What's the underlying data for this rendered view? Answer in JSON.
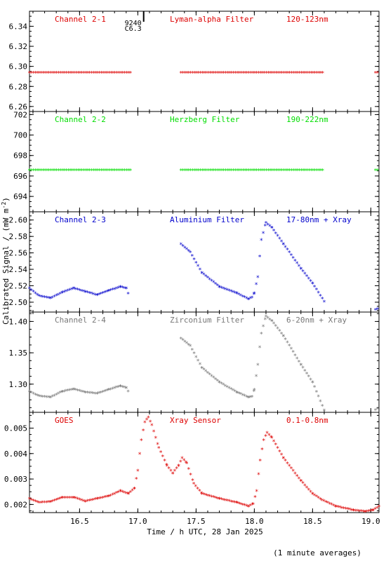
{
  "chart_data": {
    "type": "scatter",
    "xlabel": "Time / h UTC, 28 Jan 2025",
    "ylabel": "Calibrated Signal / (mW m",
    "ylabel_sup": "-2",
    "ylabel_close": ")",
    "footnote": "(1 minute averages)",
    "xlim": [
      16.07,
      19.07
    ],
    "xticks": [
      "16.5",
      "17.0",
      "17.5",
      "18.0",
      "18.5",
      "19.0"
    ],
    "xtick_values": [
      16.5,
      17.0,
      17.5,
      18.0,
      18.5,
      19.0
    ],
    "flare_marker": {
      "x": 17.02,
      "code": "9240",
      "class": "C6.3"
    },
    "panels": [
      {
        "channel": "Channel 2-1",
        "filter": "Lyman-alpha Filter",
        "band": "120-123nm",
        "color": "#dd0000",
        "ylim": [
          6.255,
          6.355
        ],
        "yticks": [
          "6.26",
          "6.28",
          "6.30",
          "6.32",
          "6.34"
        ],
        "ytick_values": [
          6.26,
          6.28,
          6.3,
          6.32,
          6.34
        ],
        "series": [
          [
            16.07,
            6.293
          ],
          [
            16.95,
            6.293
          ],
          null,
          [
            17.37,
            6.293
          ],
          [
            18.6,
            6.293
          ],
          null,
          [
            19.04,
            6.293
          ],
          [
            19.07,
            6.293
          ]
        ]
      },
      {
        "channel": "Channel 2-2",
        "filter": "Herzberg Filter",
        "band": "190-222nm",
        "color": "#00dd00",
        "ylim": [
          692.5,
          702.3
        ],
        "yticks": [
          "694",
          "696",
          "698",
          "700",
          "702"
        ],
        "ytick_values": [
          694,
          696,
          698,
          700,
          702
        ],
        "series": [
          [
            16.07,
            696.5
          ],
          [
            16.95,
            696.5
          ],
          null,
          [
            17.37,
            696.5
          ],
          [
            18.6,
            696.5
          ],
          null,
          [
            19.04,
            696.5
          ],
          [
            19.07,
            696.5
          ]
        ]
      },
      {
        "channel": "Channel 2-3",
        "filter": "Aluminium Filter",
        "band": "17-80nm + Xray",
        "color": "#0000cc",
        "ylim": [
          2.488,
          2.61
        ],
        "yticks": [
          "2.50",
          "2.52",
          "2.54",
          "2.56",
          "2.58",
          "2.60"
        ],
        "ytick_values": [
          2.5,
          2.52,
          2.54,
          2.56,
          2.58,
          2.6
        ],
        "series": [
          [
            16.07,
            2.516
          ],
          [
            16.15,
            2.507
          ],
          [
            16.25,
            2.504
          ],
          [
            16.35,
            2.511
          ],
          [
            16.45,
            2.516
          ],
          [
            16.55,
            2.512
          ],
          [
            16.65,
            2.508
          ],
          [
            16.75,
            2.513
          ],
          [
            16.85,
            2.518
          ],
          [
            16.9,
            2.516
          ],
          [
            16.93,
            2.505
          ],
          null,
          [
            17.37,
            2.57
          ],
          [
            17.45,
            2.56
          ],
          [
            17.55,
            2.535
          ],
          [
            17.7,
            2.518
          ],
          [
            17.85,
            2.51
          ],
          [
            17.95,
            2.503
          ],
          [
            17.98,
            2.505
          ],
          [
            18.0,
            2.51
          ],
          [
            18.03,
            2.53
          ],
          [
            18.06,
            2.575
          ],
          [
            18.1,
            2.596
          ],
          [
            18.15,
            2.59
          ],
          [
            18.25,
            2.57
          ],
          [
            18.4,
            2.54
          ],
          [
            18.5,
            2.522
          ],
          [
            18.6,
            2.5
          ],
          null,
          [
            19.04,
            2.49
          ],
          [
            19.07,
            2.492
          ]
        ]
      },
      {
        "channel": "Channel 2-4",
        "filter": "Zirconium Filter",
        "band": "6-20nm + Xray",
        "color": "#777777",
        "ylim": [
          1.255,
          1.415
        ],
        "yticks": [
          "1.30",
          "1.35",
          "1.40"
        ],
        "ytick_values": [
          1.3,
          1.35,
          1.4
        ],
        "series": [
          [
            16.07,
            1.287
          ],
          [
            16.15,
            1.28
          ],
          [
            16.25,
            1.278
          ],
          [
            16.35,
            1.287
          ],
          [
            16.45,
            1.291
          ],
          [
            16.55,
            1.286
          ],
          [
            16.65,
            1.284
          ],
          [
            16.75,
            1.29
          ],
          [
            16.85,
            1.296
          ],
          [
            16.9,
            1.293
          ],
          [
            16.93,
            1.283
          ],
          null,
          [
            17.37,
            1.372
          ],
          [
            17.45,
            1.36
          ],
          [
            17.55,
            1.325
          ],
          [
            17.7,
            1.302
          ],
          [
            17.85,
            1.286
          ],
          [
            17.95,
            1.278
          ],
          [
            17.98,
            1.279
          ],
          [
            18.0,
            1.29
          ],
          [
            18.03,
            1.33
          ],
          [
            18.06,
            1.38
          ],
          [
            18.1,
            1.407
          ],
          [
            18.15,
            1.4
          ],
          [
            18.25,
            1.376
          ],
          [
            18.4,
            1.33
          ],
          [
            18.5,
            1.302
          ],
          [
            18.6,
            1.257
          ],
          null,
          [
            19.04,
            1.258
          ],
          [
            19.07,
            1.262
          ]
        ]
      },
      {
        "channel": "GOES",
        "filter": "Xray Sensor",
        "band": "0.1-0.8nm",
        "color": "#dd0000",
        "ylim": [
          0.00168,
          0.00562
        ],
        "yticks": [
          "0.002",
          "0.003",
          "0.004",
          "0.005"
        ],
        "ytick_values": [
          0.002,
          0.003,
          0.004,
          0.005
        ],
        "series": [
          [
            16.07,
            0.0022
          ],
          [
            16.15,
            0.00205
          ],
          [
            16.25,
            0.00208
          ],
          [
            16.35,
            0.00225
          ],
          [
            16.45,
            0.00225
          ],
          [
            16.55,
            0.0021
          ],
          [
            16.65,
            0.0022
          ],
          [
            16.75,
            0.0023
          ],
          [
            16.85,
            0.0025
          ],
          [
            16.92,
            0.0024
          ],
          [
            16.97,
            0.0026
          ],
          [
            17.0,
            0.0033
          ],
          [
            17.03,
            0.0045
          ],
          [
            17.06,
            0.0052
          ],
          [
            17.09,
            0.0054
          ],
          [
            17.12,
            0.0051
          ],
          [
            17.18,
            0.0042
          ],
          [
            17.25,
            0.0035
          ],
          [
            17.3,
            0.0032
          ],
          [
            17.35,
            0.0035
          ],
          [
            17.38,
            0.0038
          ],
          [
            17.42,
            0.0036
          ],
          [
            17.48,
            0.0028
          ],
          [
            17.55,
            0.0024
          ],
          [
            17.7,
            0.0022
          ],
          [
            17.85,
            0.00205
          ],
          [
            17.95,
            0.0019
          ],
          [
            17.99,
            0.002
          ],
          [
            18.02,
            0.0025
          ],
          [
            18.05,
            0.0037
          ],
          [
            18.08,
            0.0045
          ],
          [
            18.11,
            0.0048
          ],
          [
            18.15,
            0.0046
          ],
          [
            18.25,
            0.0038
          ],
          [
            18.4,
            0.0029
          ],
          [
            18.5,
            0.0024
          ],
          [
            18.58,
            0.00215
          ],
          [
            18.7,
            0.0019
          ],
          [
            18.85,
            0.00175
          ],
          [
            18.95,
            0.0017
          ],
          [
            19.02,
            0.00175
          ],
          [
            19.07,
            0.0019
          ]
        ]
      }
    ]
  }
}
